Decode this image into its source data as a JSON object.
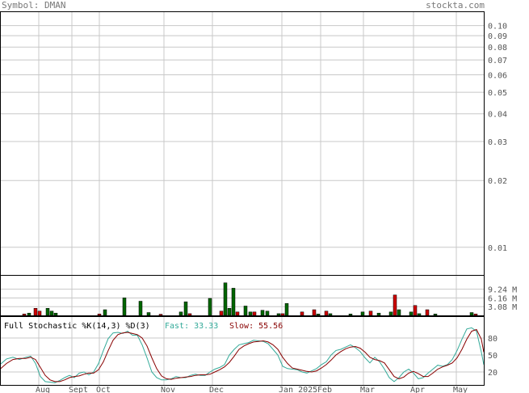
{
  "header": {
    "symbol_label": "Symbol: DMAN",
    "site": "stockta.com"
  },
  "chart_data": [
    {
      "type": "line",
      "panel": "price",
      "y_scale": "log",
      "ylim": [
        0.0075,
        0.115
      ],
      "y_ticks": [
        0.1,
        0.09,
        0.08,
        0.07,
        0.06,
        0.05,
        0.04,
        0.03,
        0.02,
        0.01
      ],
      "y_tick_labels": [
        "0.10",
        "0.09",
        "0.08",
        "0.07",
        "0.06",
        "0.05",
        "0.04",
        "0.03",
        "0.02",
        "0.01"
      ],
      "x_tick_labels": [
        "Aug",
        "Sept",
        "Oct",
        "Nov",
        "Dec",
        "Jan 2025",
        "Feb",
        "Mar",
        "Apr",
        "May"
      ],
      "grid": true,
      "series": []
    },
    {
      "type": "bar",
      "panel": "volume",
      "ylim": [
        0,
        14
      ],
      "y_ticks": [
        9.24,
        6.16,
        3.08
      ],
      "y_tick_labels": [
        "9.24 M",
        "6.16 M",
        "3.08 M"
      ],
      "colors": {
        "up": "#006600",
        "down": "#cc0000"
      },
      "bars": [
        {
          "x": 28,
          "value": 0.5,
          "dir": "down"
        },
        {
          "x": 34,
          "value": 0.8,
          "dir": "up"
        },
        {
          "x": 42,
          "value": 2.5,
          "dir": "down"
        },
        {
          "x": 47,
          "value": 1.5,
          "dir": "down"
        },
        {
          "x": 57,
          "value": 2.5,
          "dir": "up"
        },
        {
          "x": 62,
          "value": 1.5,
          "dir": "up"
        },
        {
          "x": 67,
          "value": 0.8,
          "dir": "up"
        },
        {
          "x": 121,
          "value": 0.5,
          "dir": "down"
        },
        {
          "x": 128,
          "value": 2.0,
          "dir": "up"
        },
        {
          "x": 152,
          "value": 6.2,
          "dir": "up"
        },
        {
          "x": 172,
          "value": 5.0,
          "dir": "up"
        },
        {
          "x": 182,
          "value": 1.0,
          "dir": "up"
        },
        {
          "x": 197,
          "value": 0.4,
          "dir": "down"
        },
        {
          "x": 222,
          "value": 1.2,
          "dir": "up"
        },
        {
          "x": 228,
          "value": 4.8,
          "dir": "up"
        },
        {
          "x": 233,
          "value": 0.6,
          "dir": "down"
        },
        {
          "x": 258,
          "value": 6.0,
          "dir": "up"
        },
        {
          "x": 272,
          "value": 1.5,
          "dir": "down"
        },
        {
          "x": 277,
          "value": 11.5,
          "dir": "up"
        },
        {
          "x": 282,
          "value": 2.5,
          "dir": "up"
        },
        {
          "x": 287,
          "value": 9.6,
          "dir": "up"
        },
        {
          "x": 292,
          "value": 1.2,
          "dir": "down"
        },
        {
          "x": 302,
          "value": 3.3,
          "dir": "up"
        },
        {
          "x": 308,
          "value": 1.2,
          "dir": "up"
        },
        {
          "x": 313,
          "value": 1.2,
          "dir": "down"
        },
        {
          "x": 323,
          "value": 1.8,
          "dir": "up"
        },
        {
          "x": 329,
          "value": 1.5,
          "dir": "up"
        },
        {
          "x": 343,
          "value": 0.6,
          "dir": "up"
        },
        {
          "x": 348,
          "value": 0.6,
          "dir": "down"
        },
        {
          "x": 353,
          "value": 4.2,
          "dir": "up"
        },
        {
          "x": 372,
          "value": 1.2,
          "dir": "down"
        },
        {
          "x": 387,
          "value": 2.0,
          "dir": "down"
        },
        {
          "x": 392,
          "value": 0.5,
          "dir": "up"
        },
        {
          "x": 402,
          "value": 1.5,
          "dir": "down"
        },
        {
          "x": 407,
          "value": 0.6,
          "dir": "up"
        },
        {
          "x": 432,
          "value": 0.5,
          "dir": "up"
        },
        {
          "x": 447,
          "value": 1.2,
          "dir": "up"
        },
        {
          "x": 457,
          "value": 1.5,
          "dir": "down"
        },
        {
          "x": 467,
          "value": 0.8,
          "dir": "up"
        },
        {
          "x": 482,
          "value": 1.2,
          "dir": "up"
        },
        {
          "x": 487,
          "value": 7.2,
          "dir": "down"
        },
        {
          "x": 492,
          "value": 2.0,
          "dir": "up"
        },
        {
          "x": 507,
          "value": 1.2,
          "dir": "up"
        },
        {
          "x": 512,
          "value": 3.5,
          "dir": "down"
        },
        {
          "x": 517,
          "value": 0.6,
          "dir": "up"
        },
        {
          "x": 527,
          "value": 2.0,
          "dir": "down"
        },
        {
          "x": 537,
          "value": 0.5,
          "dir": "up"
        },
        {
          "x": 582,
          "value": 1.0,
          "dir": "up"
        },
        {
          "x": 587,
          "value": 0.5,
          "dir": "down"
        }
      ]
    },
    {
      "type": "line",
      "panel": "stochastic",
      "title": "Full Stochastic %K(14,3) %D(3)",
      "fast_label": "Fast: 33.33",
      "slow_label": "Slow: 55.56",
      "ylim": [
        0,
        100
      ],
      "y_ticks": [
        80,
        50,
        20
      ],
      "y_tick_labels": [
        "80",
        "50",
        "20"
      ],
      "series": [
        {
          "key": "fast",
          "color": "#33aa99",
          "points": [
            [
              0,
              33
            ],
            [
              8,
              43
            ],
            [
              16,
              46
            ],
            [
              24,
              42
            ],
            [
              32,
              46
            ],
            [
              38,
              48
            ],
            [
              44,
              35
            ],
            [
              50,
              12
            ],
            [
              56,
              3
            ],
            [
              62,
              2
            ],
            [
              68,
              1
            ],
            [
              74,
              5
            ],
            [
              80,
              10
            ],
            [
              86,
              14
            ],
            [
              92,
              10
            ],
            [
              98,
              18
            ],
            [
              104,
              20
            ],
            [
              110,
              15
            ],
            [
              116,
              20
            ],
            [
              122,
              35
            ],
            [
              128,
              58
            ],
            [
              134,
              79
            ],
            [
              140,
              89
            ],
            [
              146,
              90
            ],
            [
              152,
              88
            ],
            [
              158,
              92
            ],
            [
              164,
              85
            ],
            [
              170,
              85
            ],
            [
              176,
              68
            ],
            [
              182,
              45
            ],
            [
              188,
              20
            ],
            [
              194,
              10
            ],
            [
              200,
              6
            ],
            [
              206,
              6
            ],
            [
              212,
              8
            ],
            [
              218,
              12
            ],
            [
              224,
              10
            ],
            [
              230,
              10
            ],
            [
              236,
              14
            ],
            [
              242,
              16
            ],
            [
              248,
              14
            ],
            [
              254,
              14
            ],
            [
              260,
              20
            ],
            [
              266,
              25
            ],
            [
              272,
              28
            ],
            [
              278,
              33
            ],
            [
              284,
              50
            ],
            [
              290,
              60
            ],
            [
              296,
              68
            ],
            [
              302,
              70
            ],
            [
              308,
              72
            ],
            [
              314,
              76
            ],
            [
              320,
              75
            ],
            [
              326,
              74
            ],
            [
              332,
              70
            ],
            [
              338,
              60
            ],
            [
              344,
              50
            ],
            [
              350,
              30
            ],
            [
              356,
              26
            ],
            [
              362,
              25
            ],
            [
              368,
              24
            ],
            [
              374,
              20
            ],
            [
              380,
              18
            ],
            [
              386,
              22
            ],
            [
              392,
              26
            ],
            [
              398,
              33
            ],
            [
              404,
              38
            ],
            [
              410,
              50
            ],
            [
              416,
              58
            ],
            [
              422,
              60
            ],
            [
              428,
              64
            ],
            [
              434,
              68
            ],
            [
              440,
              63
            ],
            [
              446,
              56
            ],
            [
              452,
              45
            ],
            [
              458,
              36
            ],
            [
              464,
              46
            ],
            [
              470,
              38
            ],
            [
              476,
              25
            ],
            [
              482,
              10
            ],
            [
              488,
              3
            ],
            [
              494,
              10
            ],
            [
              500,
              20
            ],
            [
              506,
              25
            ],
            [
              512,
              18
            ],
            [
              518,
              8
            ],
            [
              524,
              10
            ],
            [
              530,
              18
            ],
            [
              536,
              25
            ],
            [
              542,
              32
            ],
            [
              548,
              30
            ],
            [
              554,
              33
            ],
            [
              560,
              42
            ],
            [
              566,
              58
            ],
            [
              572,
              78
            ],
            [
              578,
              96
            ],
            [
              584,
              98
            ],
            [
              590,
              92
            ],
            [
              596,
              55
            ],
            [
              599,
              33
            ]
          ]
        },
        {
          "key": "slow",
          "color": "#880000",
          "points": [
            [
              0,
              25
            ],
            [
              8,
              35
            ],
            [
              16,
              42
            ],
            [
              24,
              44
            ],
            [
              32,
              44
            ],
            [
              38,
              46
            ],
            [
              44,
              42
            ],
            [
              50,
              28
            ],
            [
              56,
              14
            ],
            [
              62,
              6
            ],
            [
              68,
              3
            ],
            [
              74,
              3
            ],
            [
              80,
              6
            ],
            [
              86,
              10
            ],
            [
              92,
              12
            ],
            [
              98,
              13
            ],
            [
              104,
              16
            ],
            [
              110,
              18
            ],
            [
              116,
              18
            ],
            [
              122,
              24
            ],
            [
              128,
              38
            ],
            [
              134,
              58
            ],
            [
              140,
              76
            ],
            [
              146,
              86
            ],
            [
              152,
              89
            ],
            [
              158,
              90
            ],
            [
              164,
              88
            ],
            [
              170,
              86
            ],
            [
              176,
              80
            ],
            [
              182,
              66
            ],
            [
              188,
              45
            ],
            [
              194,
              26
            ],
            [
              200,
              13
            ],
            [
              206,
              8
            ],
            [
              212,
              7
            ],
            [
              218,
              9
            ],
            [
              224,
              10
            ],
            [
              230,
              11
            ],
            [
              236,
              12
            ],
            [
              242,
              14
            ],
            [
              248,
              15
            ],
            [
              254,
              15
            ],
            [
              260,
              16
            ],
            [
              266,
              20
            ],
            [
              272,
              24
            ],
            [
              278,
              29
            ],
            [
              284,
              37
            ],
            [
              290,
              48
            ],
            [
              296,
              60
            ],
            [
              302,
              66
            ],
            [
              308,
              70
            ],
            [
              314,
              73
            ],
            [
              320,
              74
            ],
            [
              326,
              75
            ],
            [
              332,
              73
            ],
            [
              338,
              68
            ],
            [
              344,
              60
            ],
            [
              350,
              46
            ],
            [
              356,
              35
            ],
            [
              362,
              27
            ],
            [
              368,
              25
            ],
            [
              374,
              23
            ],
            [
              380,
              21
            ],
            [
              386,
              20
            ],
            [
              392,
              22
            ],
            [
              398,
              27
            ],
            [
              404,
              33
            ],
            [
              410,
              41
            ],
            [
              416,
              50
            ],
            [
              422,
              56
            ],
            [
              428,
              61
            ],
            [
              434,
              64
            ],
            [
              440,
              65
            ],
            [
              446,
              62
            ],
            [
              452,
              55
            ],
            [
              458,
              46
            ],
            [
              464,
              42
            ],
            [
              470,
              40
            ],
            [
              476,
              36
            ],
            [
              482,
              24
            ],
            [
              488,
              12
            ],
            [
              494,
              8
            ],
            [
              500,
              11
            ],
            [
              506,
              18
            ],
            [
              512,
              21
            ],
            [
              518,
              17
            ],
            [
              524,
              12
            ],
            [
              530,
              12
            ],
            [
              536,
              18
            ],
            [
              542,
              25
            ],
            [
              548,
              29
            ],
            [
              554,
              32
            ],
            [
              560,
              36
            ],
            [
              566,
              45
            ],
            [
              572,
              60
            ],
            [
              578,
              78
            ],
            [
              584,
              92
            ],
            [
              590,
              95
            ],
            [
              596,
              78
            ],
            [
              599,
              55
            ]
          ]
        }
      ]
    }
  ]
}
